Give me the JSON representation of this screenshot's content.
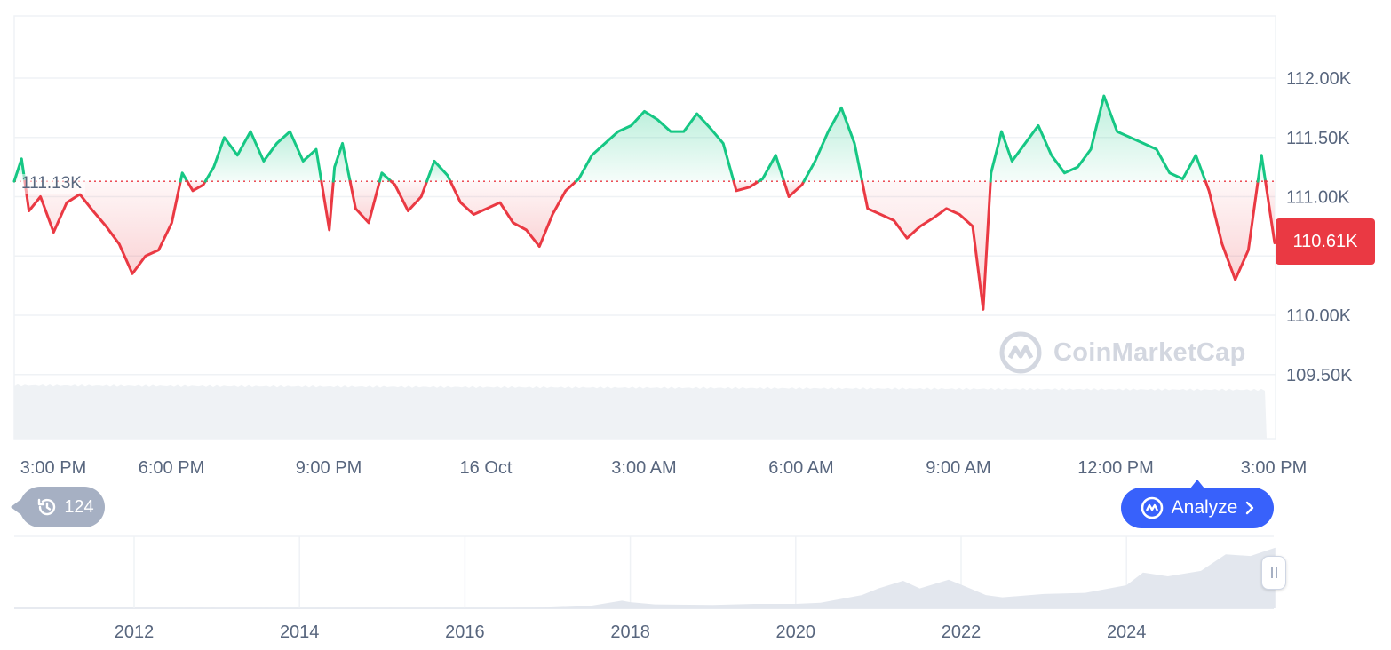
{
  "chart_data": [
    {
      "type": "line",
      "title": "",
      "ylabel": "",
      "xlabel": "",
      "ylim": [
        109.4,
        112.5
      ],
      "y_ticks": [
        "112.00K",
        "111.50K",
        "111.00K",
        "110.00K",
        "109.50K"
      ],
      "y_tick_values": [
        112.0,
        111.5,
        111.0,
        110.0,
        109.5
      ],
      "x_ticks": [
        "3:00 PM",
        "6:00 PM",
        "9:00 PM",
        "16 Oct",
        "3:00 AM",
        "6:00 AM",
        "9:00 AM",
        "12:00 PM",
        "3:00 PM"
      ],
      "x_tick_hours": [
        0,
        3,
        6,
        9,
        12,
        15,
        18,
        21,
        24
      ],
      "reference_value": 111.13,
      "reference_label": "111.13K",
      "current_value": 110.61,
      "current_label": "110.61K",
      "colors": {
        "above": "#16c784",
        "below": "#ea3943",
        "grid": "#eff2f5",
        "volume": "#eff2f5"
      },
      "grid": true,
      "series": [
        {
          "x_hours": [
            0,
            0.14,
            0.28,
            0.5,
            0.75,
            1.0,
            1.25,
            1.5,
            1.75,
            2.0,
            2.25,
            2.5,
            2.75,
            3.0,
            3.2,
            3.4,
            3.6,
            3.8,
            4.0,
            4.25,
            4.5,
            4.75,
            5.0,
            5.25,
            5.5,
            5.75,
            6.0,
            6.1,
            6.25,
            6.5,
            6.75,
            7.0,
            7.25,
            7.5,
            7.75,
            8.0,
            8.25,
            8.5,
            8.75,
            9.0,
            9.25,
            9.5,
            9.75,
            10.0,
            10.25,
            10.5,
            10.75,
            11.0,
            11.25,
            11.5,
            11.75,
            12.0,
            12.25,
            12.5,
            12.75,
            13.0,
            13.25,
            13.5,
            13.75,
            14.0,
            14.25,
            14.5,
            14.75,
            15.0,
            15.25,
            15.5,
            15.75,
            16.0,
            16.25,
            16.5,
            16.75,
            17.0,
            17.25,
            17.5,
            17.75,
            18.0,
            18.25,
            18.45,
            18.6,
            18.8,
            19.0,
            19.25,
            19.5,
            19.75,
            20.0,
            20.25,
            20.5,
            20.75,
            21.0,
            21.25,
            21.5,
            21.75,
            22.0,
            22.25,
            22.5,
            22.75,
            23.0,
            23.25,
            23.5,
            23.75,
            24.0
          ],
          "y": [
            111.13,
            111.32,
            110.88,
            111.0,
            110.7,
            110.95,
            111.02,
            110.88,
            110.75,
            110.6,
            110.35,
            110.5,
            110.55,
            110.78,
            111.2,
            111.05,
            111.1,
            111.25,
            111.5,
            111.35,
            111.55,
            111.3,
            111.45,
            111.55,
            111.3,
            111.4,
            110.72,
            111.25,
            111.45,
            110.9,
            110.78,
            111.2,
            111.1,
            110.88,
            111.0,
            111.3,
            111.18,
            110.95,
            110.85,
            110.9,
            110.95,
            110.78,
            110.72,
            110.58,
            110.85,
            111.05,
            111.15,
            111.35,
            111.45,
            111.55,
            111.6,
            111.72,
            111.65,
            111.55,
            111.55,
            111.7,
            111.58,
            111.45,
            111.05,
            111.08,
            111.15,
            111.35,
            111.0,
            111.1,
            111.3,
            111.55,
            111.75,
            111.45,
            110.9,
            110.85,
            110.8,
            110.65,
            110.75,
            110.82,
            110.9,
            110.85,
            110.75,
            110.05,
            111.2,
            111.55,
            111.3,
            111.45,
            111.6,
            111.35,
            111.2,
            111.25,
            111.4,
            111.85,
            111.55,
            111.5,
            111.45,
            111.4,
            111.2,
            111.15,
            111.35,
            111.05,
            110.6,
            110.3,
            110.55,
            111.35,
            110.61
          ]
        }
      ]
    },
    {
      "type": "area",
      "title": "",
      "x_ticks": [
        "2012",
        "2014",
        "2016",
        "2018",
        "2020",
        "2022",
        "2024"
      ],
      "x": [
        2010.6,
        2011,
        2012,
        2013,
        2014,
        2015,
        2016,
        2017,
        2017.5,
        2017.9,
        2018.0,
        2018.3,
        2019,
        2019.5,
        2020,
        2020.3,
        2020.8,
        2021.0,
        2021.3,
        2021.5,
        2021.85,
        2022.0,
        2022.3,
        2022.5,
        2023.0,
        2023.5,
        2024.0,
        2024.2,
        2024.5,
        2024.9,
        2025.2,
        2025.5,
        2025.8
      ],
      "values": [
        0.1,
        0.1,
        0.1,
        0.2,
        0.6,
        0.3,
        0.4,
        1.5,
        4,
        14,
        11,
        7,
        6,
        8,
        8,
        10,
        24,
        36,
        50,
        36,
        52,
        43,
        24,
        20,
        26,
        28,
        42,
        65,
        58,
        68,
        98,
        95,
        110
      ]
    }
  ],
  "history": {
    "icon": "history-icon",
    "count": "124"
  },
  "analyze": {
    "label": "Analyze",
    "icon": "cmc-ai-icon",
    "chevron": "chevron-right-icon"
  },
  "watermark": {
    "text": "CoinMarketCap",
    "icon": "cmc-logo-icon"
  },
  "range_handle": {
    "icon": "drag-handle-icon"
  }
}
